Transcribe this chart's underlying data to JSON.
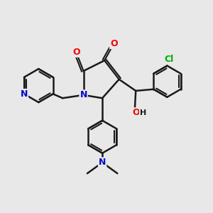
{
  "background_color": "#e8e8e8",
  "bond_color": "#1a1a1a",
  "atom_colors": {
    "N": "#0000cc",
    "O": "#ff0000",
    "Cl": "#00aa00",
    "H": "#1a1a1a",
    "C": "#1a1a1a"
  },
  "figsize": [
    3.0,
    3.0
  ],
  "dpi": 100
}
